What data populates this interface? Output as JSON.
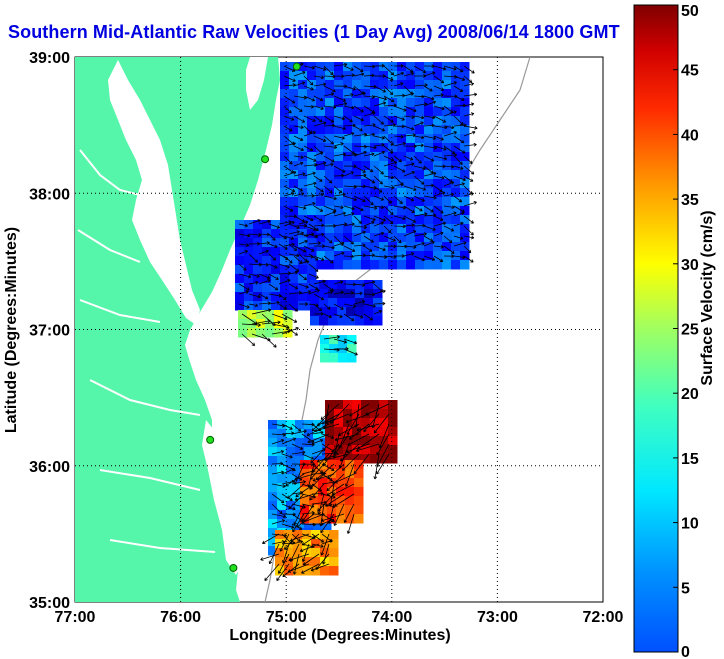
{
  "title": "Southern Mid-Atlantic Raw Velocities (1 Day Avg) 2008/06/14 1800 GMT",
  "map": {
    "type": "heatmap",
    "xlabel": "Longitude (Degrees:Minutes)",
    "ylabel": "Latitude (Degrees:Minutes)",
    "x_ticks": [
      "77:00",
      "76:00",
      "75:00",
      "74:00",
      "73:00",
      "72:00"
    ],
    "y_ticks": [
      "39:00",
      "38:00",
      "37:00",
      "36:00",
      "35:00"
    ],
    "xlim": [
      -77,
      -72
    ],
    "ylim": [
      35,
      39
    ],
    "grid": "dotted",
    "colorbar": {
      "label": "Surface Velocity (cm/s)",
      "ticks": [
        "50",
        "45",
        "40",
        "35",
        "30",
        "25",
        "20",
        "15",
        "10",
        "5",
        "0"
      ],
      "range": [
        0,
        50
      ],
      "colormap": "jet"
    },
    "land_color": "#55f5aa",
    "radar_sites": [
      {
        "lon": -74.9,
        "lat": 38.93
      },
      {
        "lon": -75.2,
        "lat": 38.25
      },
      {
        "lon": -75.72,
        "lat": 36.19
      },
      {
        "lon": -75.5,
        "lat": 35.25
      }
    ]
  }
}
